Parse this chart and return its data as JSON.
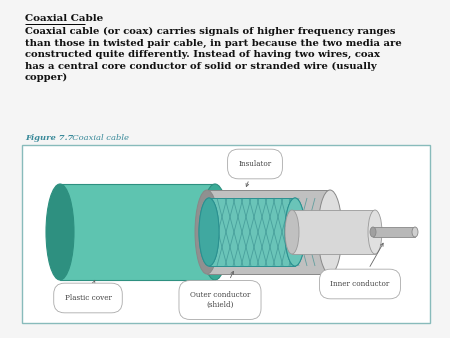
{
  "title": "Coaxial Cable",
  "body_text": "Coaxial cable (or coax) carries signals of higher frequency ranges\nthan those in twisted pair cable, in part because the two media are\nconstructed quite differently. Instead of having two wires, coax\nhas a central core conductor of solid or stranded wire (usually\ncopper)",
  "figure_label": "Figure 7.7",
  "figure_caption": "  Coaxial cable",
  "bg_color": "#f5f5f5",
  "box_bg": "#ffffff",
  "box_border": "#88bbbb",
  "title_color": "#111111",
  "body_color": "#111111",
  "fig_label_color": "#3a8a9a",
  "cable_colors": {
    "teal_outer": "#5ec4b0",
    "teal_dark": "#3aaa96",
    "teal_end": "#2e9080",
    "gray_body": "#c0c0c0",
    "gray_light": "#dedede",
    "gray_dark": "#999999",
    "teal_mesh": "#6ac4b8",
    "mesh_line": "#3a9090",
    "inner_ins": "#d8d8d8",
    "wire_gray": "#b8b8b8"
  },
  "label_color": "#444444",
  "label_border": "#aaaaaa",
  "arrow_color": "#666666"
}
